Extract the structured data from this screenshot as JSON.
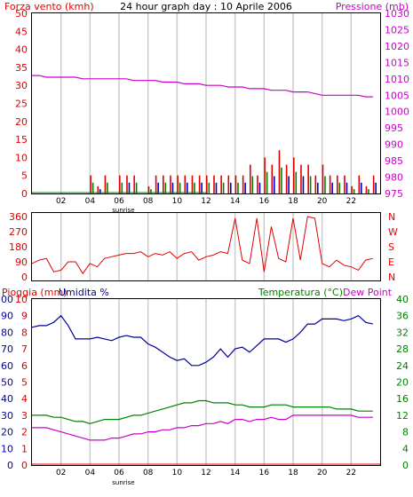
{
  "header": {
    "left_label": "Forza vento (kmh)",
    "title": "24 hour graph day : 10 Aprile 2006",
    "right_label": "Pressione (mb)"
  },
  "bottom_header": {
    "left_label_1": "Pioggia (mm)",
    "left_label_2": "Umidita %",
    "right_label_1": "Temperatura (°C)",
    "right_label_2": "Dew Point"
  },
  "x_ticks": [
    "02",
    "04",
    "06",
    "08",
    "10",
    "12",
    "14",
    "16",
    "18",
    "20",
    "22"
  ],
  "sunrise_label": "sunrise",
  "colors": {
    "wind": "#e00000",
    "gust_blue": "#0000cc",
    "gust_green": "#008000",
    "pressure": "#cc00cc",
    "humidity": "#000099",
    "temperature": "#008000",
    "dewpoint": "#cc00cc",
    "rain": "#e00000",
    "grid": "#cccccc",
    "left_axis_text": "#e00000",
    "right_axis_text_pressure": "#cc00cc",
    "right_axis_text_temp": "#008000"
  },
  "chart_data": [
    {
      "type": "line",
      "name": "wind-pressure",
      "xlim": [
        0,
        24
      ],
      "y_left_ticks": [
        "50",
        "45",
        "40",
        "35",
        "30",
        "25",
        "20",
        "15",
        "10",
        "5",
        "0"
      ],
      "y_left_lim": [
        0,
        50
      ],
      "y_right_ticks": [
        "1030",
        "1025",
        "1020",
        "1015",
        "1010",
        "1005",
        "1000",
        "995",
        "990",
        "985",
        "980",
        "975"
      ],
      "y_right_lim": [
        975,
        1030
      ],
      "wind_axis_inner_ticks": [
        "20",
        "15",
        "10",
        "5",
        "0"
      ],
      "series": [
        {
          "name": "Pressione (mb)",
          "axis": "right",
          "color": "pressure",
          "x": [
            0,
            0.5,
            1,
            1.5,
            2,
            2.5,
            3,
            3.5,
            4,
            4.5,
            5,
            5.5,
            6,
            6.5,
            7,
            7.5,
            8,
            8.5,
            9,
            9.5,
            10,
            10.5,
            11,
            11.5,
            12,
            12.5,
            13,
            13.5,
            14,
            14.5,
            15,
            15.5,
            16,
            16.5,
            17,
            17.5,
            18,
            18.5,
            19,
            19.5,
            20,
            20.5,
            21,
            21.5,
            22,
            22.5,
            23,
            23.5
          ],
          "values": [
            1011,
            1011,
            1010.5,
            1010.5,
            1010.5,
            1010.5,
            1010.5,
            1010,
            1010,
            1010,
            1010,
            1010,
            1010,
            1010,
            1009.5,
            1009.5,
            1009.5,
            1009.5,
            1009,
            1009,
            1009,
            1008.5,
            1008.5,
            1008.5,
            1008,
            1008,
            1008,
            1007.5,
            1007.5,
            1007.5,
            1007,
            1007,
            1007,
            1006.5,
            1006.5,
            1006.5,
            1006,
            1006,
            1006,
            1005.5,
            1005,
            1005,
            1005,
            1005,
            1005,
            1005,
            1004.5,
            1004.5
          ]
        },
        {
          "name": "Forza vento (kmh)",
          "axis": "left",
          "color": "wind",
          "x": [
            0,
            0.5,
            1,
            1.5,
            2,
            2.5,
            3,
            3.5,
            4,
            4.5,
            5,
            5.5,
            6,
            6.5,
            7,
            7.5,
            8,
            8.5,
            9,
            9.5,
            10,
            10.5,
            11,
            11.5,
            12,
            12.5,
            13,
            13.5,
            14,
            14.5,
            15,
            15.5,
            16,
            16.5,
            17,
            17.5,
            18,
            18.5,
            19,
            19.5,
            20,
            20.5,
            21,
            21.5,
            22,
            22.5,
            23,
            23.5
          ],
          "values": [
            0,
            0,
            0,
            0,
            0,
            0,
            0,
            0,
            5,
            2,
            5,
            0,
            5,
            5,
            5,
            0,
            2,
            5,
            5,
            5,
            5,
            5,
            5,
            5,
            5,
            5,
            5,
            5,
            5,
            5,
            8,
            5,
            10,
            8,
            12,
            8,
            10,
            8,
            8,
            5,
            8,
            5,
            5,
            5,
            2,
            5,
            2,
            5
          ]
        }
      ]
    },
    {
      "type": "line",
      "name": "wind-direction",
      "xlim": [
        0,
        24
      ],
      "y_left_ticks": [
        "360",
        "270",
        "180",
        "90",
        "0"
      ],
      "y_left_lim": [
        0,
        360
      ],
      "y_right_ticks": [
        "N",
        "W",
        "S",
        "E",
        "N"
      ],
      "series": [
        {
          "name": "direction",
          "color": "wind",
          "x": [
            0,
            0.5,
            1,
            1.5,
            2,
            2.5,
            3,
            3.5,
            4,
            4.5,
            5,
            5.5,
            6,
            6.5,
            7,
            7.5,
            8,
            8.5,
            9,
            9.5,
            10,
            10.5,
            11,
            11.5,
            12,
            12.5,
            13,
            13.5,
            14,
            14.5,
            15,
            15.5,
            16,
            16.5,
            17,
            17.5,
            18,
            18.5,
            19,
            19.5,
            20,
            20.5,
            21,
            21.5,
            22,
            22.5,
            23,
            23.5
          ],
          "values": [
            80,
            100,
            110,
            30,
            40,
            90,
            90,
            20,
            80,
            60,
            110,
            120,
            130,
            140,
            140,
            150,
            120,
            140,
            130,
            150,
            110,
            140,
            150,
            100,
            120,
            130,
            150,
            140,
            350,
            100,
            80,
            350,
            30,
            300,
            110,
            90,
            350,
            100,
            360,
            350,
            80,
            60,
            100,
            70,
            60,
            40,
            100,
            110
          ]
        }
      ]
    },
    {
      "type": "line",
      "name": "rain-humidity-temperature",
      "xlim": [
        0,
        24
      ],
      "y_left_ticks_rain": [
        "10",
        "9",
        "8",
        "7",
        "6",
        "5",
        "4",
        "3",
        "2",
        "1",
        "0"
      ],
      "y_left_ticks_humidity": [
        "100",
        "90",
        "80",
        "70",
        "60",
        "50",
        "40",
        "30",
        "20",
        "10",
        "0"
      ],
      "y_right_ticks": [
        "40",
        "36",
        "32",
        "28",
        "24",
        "20",
        "16",
        "12",
        "8",
        "4",
        "0"
      ],
      "y_right_lim": [
        0,
        40
      ],
      "series": [
        {
          "name": "Umidita %",
          "color": "humidity",
          "x": [
            0,
            0.5,
            1,
            1.5,
            2,
            2.5,
            3,
            3.5,
            4,
            4.5,
            5,
            5.5,
            6,
            6.5,
            7,
            7.5,
            8,
            8.5,
            9,
            9.5,
            10,
            10.5,
            11,
            11.5,
            12,
            12.5,
            13,
            13.5,
            14,
            14.5,
            15,
            15.5,
            16,
            16.5,
            17,
            17.5,
            18,
            18.5,
            19,
            19.5,
            20,
            20.5,
            21,
            21.5,
            22,
            22.5,
            23,
            23.5
          ],
          "values": [
            83,
            84,
            84,
            86,
            90,
            84,
            76,
            76,
            76,
            77,
            76,
            75,
            77,
            78,
            77,
            77,
            73,
            71,
            68,
            65,
            63,
            64,
            60,
            60,
            62,
            65,
            70,
            65,
            70,
            71,
            68,
            72,
            76,
            76,
            76,
            74,
            76,
            80,
            85,
            85,
            88,
            88,
            88,
            87,
            88,
            90,
            86,
            85
          ]
        },
        {
          "name": "Temperatura (°C)",
          "color": "temperature",
          "x": [
            0,
            0.5,
            1,
            1.5,
            2,
            2.5,
            3,
            3.5,
            4,
            4.5,
            5,
            5.5,
            6,
            6.5,
            7,
            7.5,
            8,
            8.5,
            9,
            9.5,
            10,
            10.5,
            11,
            11.5,
            12,
            12.5,
            13,
            13.5,
            14,
            14.5,
            15,
            15.5,
            16,
            16.5,
            17,
            17.5,
            18,
            18.5,
            19,
            19.5,
            20,
            20.5,
            21,
            21.5,
            22,
            22.5,
            23,
            23.5
          ],
          "values": [
            12,
            12,
            12,
            11.5,
            11.5,
            11,
            10.5,
            10.5,
            10,
            10.5,
            11,
            11,
            11,
            11.5,
            12,
            12,
            12.5,
            13,
            13.5,
            14,
            14.5,
            15,
            15,
            15.5,
            15.5,
            15,
            15,
            15,
            14.5,
            14.5,
            14,
            14,
            14,
            14.5,
            14.5,
            14.5,
            14,
            14,
            14,
            14,
            14,
            14,
            13.5,
            13.5,
            13.5,
            13,
            13,
            13
          ]
        },
        {
          "name": "Dew Point",
          "color": "dewpoint",
          "x": [
            0,
            0.5,
            1,
            1.5,
            2,
            2.5,
            3,
            3.5,
            4,
            4.5,
            5,
            5.5,
            6,
            6.5,
            7,
            7.5,
            8,
            8.5,
            9,
            9.5,
            10,
            10.5,
            11,
            11.5,
            12,
            12.5,
            13,
            13.5,
            14,
            14.5,
            15,
            15.5,
            16,
            16.5,
            17,
            17.5,
            18,
            18.5,
            19,
            19.5,
            20,
            20.5,
            21,
            21.5,
            22,
            22.5,
            23,
            23.5
          ],
          "values": [
            9,
            9,
            9,
            8.5,
            8,
            7.5,
            7,
            6.5,
            6,
            6,
            6,
            6.5,
            6.5,
            7,
            7.5,
            7.5,
            8,
            8,
            8.5,
            8.5,
            9,
            9,
            9.5,
            9.5,
            10,
            10,
            10.5,
            10,
            11,
            11,
            10.5,
            11,
            11,
            11.5,
            11,
            11,
            12,
            12,
            12,
            12,
            12,
            12,
            12,
            12,
            12,
            11.5,
            11.5,
            11.5
          ]
        },
        {
          "name": "Pioggia (mm)",
          "color": "rain",
          "x": [
            0,
            24
          ],
          "values": [
            0,
            0
          ]
        }
      ]
    }
  ]
}
